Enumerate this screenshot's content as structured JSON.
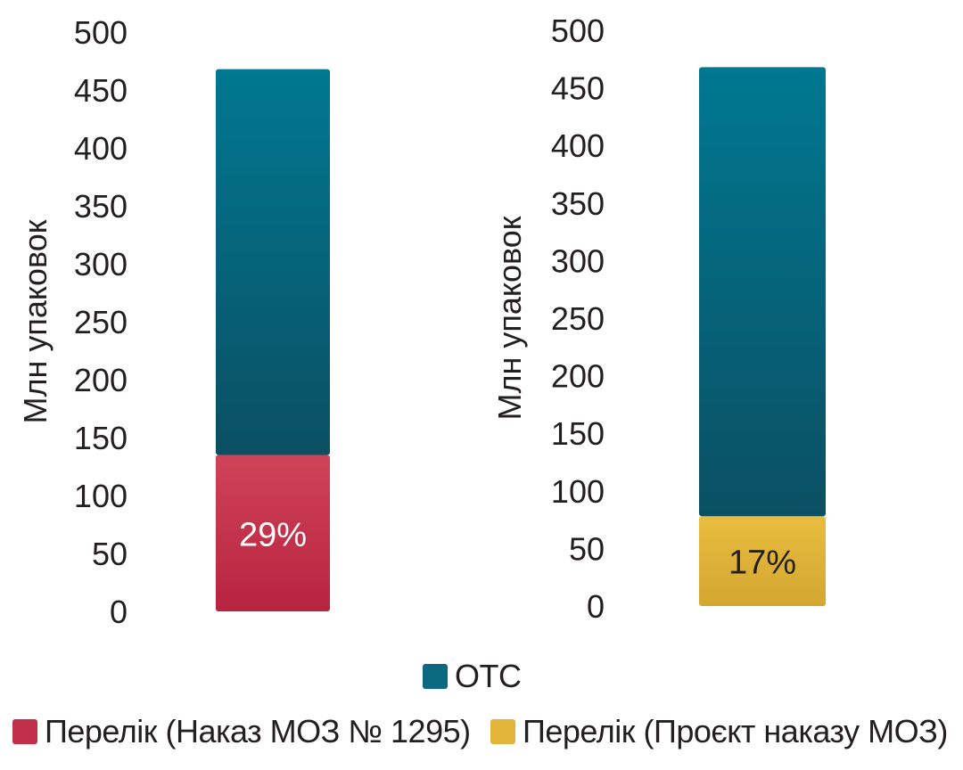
{
  "chart_data": [
    {
      "type": "bar",
      "stacked": true,
      "ylabel": "Млн упаковок",
      "ylim": [
        0,
        500
      ],
      "yticks": [
        "0",
        "50",
        "100",
        "150",
        "200",
        "250",
        "300",
        "350",
        "400",
        "450",
        "500"
      ],
      "grid": false,
      "series": [
        {
          "name": "Перелік (Наказ МОЗ № 1295)",
          "values": [
            135
          ],
          "color": "#c0304a",
          "label": "29%"
        },
        {
          "name": "OTC",
          "values": [
            333
          ],
          "color": "#006f86"
        }
      ]
    },
    {
      "type": "bar",
      "stacked": true,
      "ylabel": "Млн упаковок",
      "ylim": [
        0,
        500
      ],
      "yticks": [
        "0",
        "50",
        "100",
        "150",
        "200",
        "250",
        "300",
        "350",
        "400",
        "450",
        "500"
      ],
      "grid": false,
      "series": [
        {
          "name": "Перелік (Проєкт наказу МОЗ)",
          "values": [
            78
          ],
          "color": "#e2b53a",
          "label": "17%"
        },
        {
          "name": "OTC",
          "values": [
            390
          ],
          "color": "#006f86"
        }
      ]
    }
  ],
  "legend": {
    "placement": "bottom",
    "otc": {
      "label": "OTC",
      "color": "#006f86"
    },
    "list1": {
      "label": "Перелік (Наказ МОЗ № 1295)",
      "color": "#c0304a"
    },
    "list2": {
      "label": "Перелік (Проєкт наказу МОЗ)",
      "color": "#e2b53a"
    }
  }
}
